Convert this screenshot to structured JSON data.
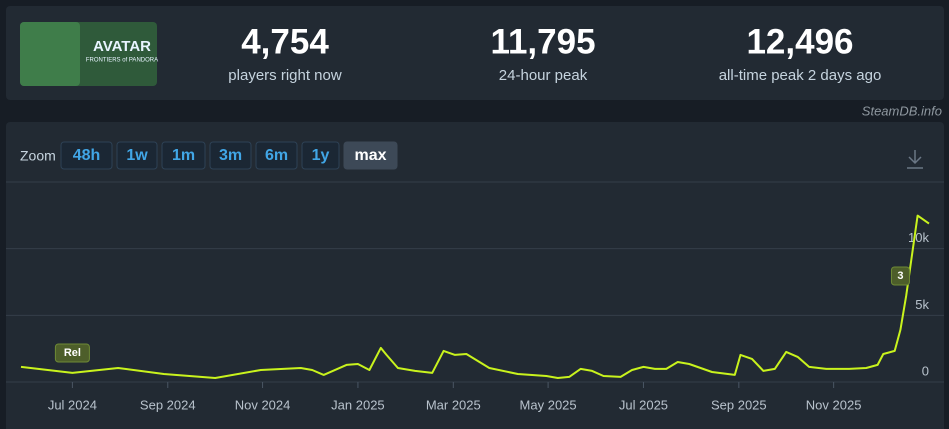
{
  "header": {
    "logo": {
      "title": "AVATAR",
      "subtitle": "FRONTIERS of PANDORA"
    },
    "stats": [
      {
        "value": "4,754",
        "label": "players right now"
      },
      {
        "value": "11,795",
        "label": "24-hour peak"
      },
      {
        "value": "12,496",
        "label": "all-time peak 2 days ago"
      }
    ]
  },
  "source": "SteamDB.info",
  "zoom": {
    "label": "Zoom",
    "options": [
      "48h",
      "1w",
      "1m",
      "3m",
      "6m",
      "1y",
      "max"
    ],
    "active": "max"
  },
  "chart_data": {
    "type": "line",
    "x": [
      2024.41,
      2024.5,
      2024.58,
      2024.66,
      2024.75,
      2024.83,
      2024.9,
      2024.92,
      2024.94,
      2024.98,
      2025.0,
      2025.02,
      2025.04,
      2025.05,
      2025.07,
      2025.1,
      2025.13,
      2025.15,
      2025.17,
      2025.19,
      2025.23,
      2025.28,
      2025.33,
      2025.35,
      2025.37,
      2025.39,
      2025.41,
      2025.43,
      2025.46,
      2025.48,
      2025.5,
      2025.52,
      2025.54,
      2025.56,
      2025.58,
      2025.6,
      2025.62,
      2025.66,
      2025.67,
      2025.69,
      2025.71,
      2025.73,
      2025.75,
      2025.77,
      2025.79,
      2025.82,
      2025.86,
      2025.89,
      2025.91,
      2025.92,
      2025.94,
      2025.95,
      2025.96,
      2025.98,
      2026.0
    ],
    "series": [
      {
        "name": "Players",
        "color": "#c9f31d",
        "values": [
          1130,
          680,
          1050,
          600,
          300,
          900,
          1050,
          900,
          530,
          1280,
          1350,
          900,
          2560,
          2030,
          1050,
          830,
          680,
          2330,
          2030,
          2100,
          1050,
          600,
          450,
          300,
          380,
          980,
          830,
          450,
          380,
          900,
          1130,
          980,
          980,
          1500,
          1350,
          1050,
          750,
          530,
          2030,
          1730,
          830,
          980,
          2260,
          1880,
          1130,
          980,
          980,
          1050,
          1280,
          2100,
          2330,
          3910,
          6470,
          12480,
          11880
        ]
      }
    ],
    "xlim": [
      2024.41,
      2026.0
    ],
    "xticks": [
      {
        "value": 2024.5,
        "label": "Jul 2024"
      },
      {
        "value": 2024.667,
        "label": "Sep 2024"
      },
      {
        "value": 2024.833,
        "label": "Nov 2024"
      },
      {
        "value": 2025.0,
        "label": "Jan 2025"
      },
      {
        "value": 2025.167,
        "label": "Mar 2025"
      },
      {
        "value": 2025.333,
        "label": "May 2025"
      },
      {
        "value": 2025.5,
        "label": "Jul 2025"
      },
      {
        "value": 2025.667,
        "label": "Sep 2025"
      },
      {
        "value": 2025.833,
        "label": "Nov 2025"
      }
    ],
    "ylim": [
      0,
      15000
    ],
    "yticks": [
      0,
      {
        "value": 5000,
        "label": "5k"
      },
      {
        "value": 10000,
        "label": "10k"
      },
      {
        "value": 15000,
        "label": ""
      }
    ],
    "grid": true,
    "annotations": [
      {
        "text": "Rel",
        "x": 2024.5
      },
      {
        "text": "3",
        "x": 2025.95
      }
    ]
  }
}
